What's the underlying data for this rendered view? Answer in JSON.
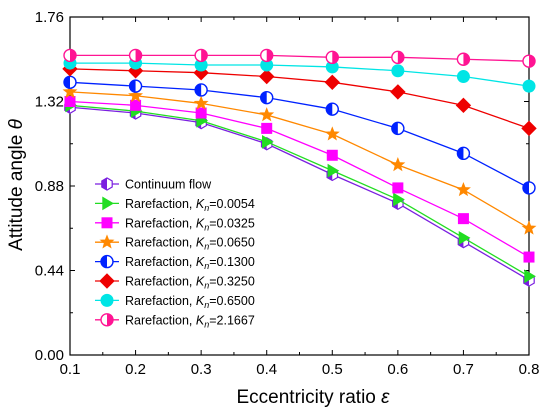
{
  "chart_data": {
    "type": "line",
    "title": "",
    "xlabel": "Eccentricity ratio",
    "xsymbol": "ε",
    "ylabel": "Attitude angle",
    "ysymbol": "θ",
    "xlim": [
      0.1,
      0.8
    ],
    "ylim": [
      0.0,
      1.76
    ],
    "x_ticks": [
      "0.1",
      "0.2",
      "0.3",
      "0.4",
      "0.5",
      "0.6",
      "0.7",
      "0.8"
    ],
    "y_ticks": [
      "0.00",
      "0.44",
      "0.88",
      "1.32",
      "1.76"
    ],
    "grid": false,
    "legend_position": "bottom-left",
    "x": [
      0.1,
      0.2,
      0.3,
      0.4,
      0.5,
      0.6,
      0.7,
      0.8
    ],
    "series": [
      {
        "name": "Continuum flow",
        "name_main": "Continuum flow",
        "kn": "",
        "color": "#7b1fe0",
        "marker": "hexagon-half",
        "values": [
          1.29,
          1.26,
          1.21,
          1.1,
          0.94,
          0.79,
          0.59,
          0.39
        ]
      },
      {
        "name": "Rarefaction, Kn=0.0054",
        "name_main": "Rarefaction,",
        "kn": "=0.0054",
        "color": "#22dd22",
        "marker": "triangle-right",
        "values": [
          1.3,
          1.27,
          1.22,
          1.11,
          0.96,
          0.81,
          0.61,
          0.41
        ]
      },
      {
        "name": "Rarefaction, Kn=0.0325",
        "name_main": "Rarefaction,",
        "kn": "=0.0325",
        "color": "#ff00ff",
        "marker": "square",
        "values": [
          1.32,
          1.3,
          1.26,
          1.18,
          1.04,
          0.87,
          0.71,
          0.51
        ]
      },
      {
        "name": "Rarefaction, Kn=0.0650",
        "name_main": "Rarefaction,",
        "kn": "=0.0650",
        "color": "#ff8800",
        "marker": "star",
        "values": [
          1.37,
          1.35,
          1.31,
          1.25,
          1.15,
          0.99,
          0.86,
          0.66
        ]
      },
      {
        "name": "Rarefaction, Kn=0.1300",
        "name_main": "Rarefaction,",
        "kn": "=0.1300",
        "color": "#0022ff",
        "marker": "circle-half",
        "values": [
          1.42,
          1.4,
          1.38,
          1.34,
          1.28,
          1.18,
          1.05,
          0.87
        ]
      },
      {
        "name": "Rarefaction, Kn=0.3250",
        "name_main": "Rarefaction,",
        "kn": "=0.3250",
        "color": "#ee0000",
        "marker": "diamond",
        "values": [
          1.49,
          1.48,
          1.47,
          1.45,
          1.42,
          1.37,
          1.3,
          1.18
        ]
      },
      {
        "name": "Rarefaction, Kn=0.6500",
        "name_main": "Rarefaction,",
        "kn": "=0.6500",
        "color": "#00e5e5",
        "marker": "circle",
        "values": [
          1.52,
          1.52,
          1.51,
          1.51,
          1.5,
          1.48,
          1.45,
          1.4
        ]
      },
      {
        "name": "Rarefaction, Kn=2.1667",
        "name_main": "Rarefaction,",
        "kn": "=2.1667",
        "color": "#ff1493",
        "marker": "circle-half-left",
        "values": [
          1.56,
          1.56,
          1.56,
          1.56,
          1.55,
          1.55,
          1.54,
          1.53
        ]
      }
    ]
  }
}
